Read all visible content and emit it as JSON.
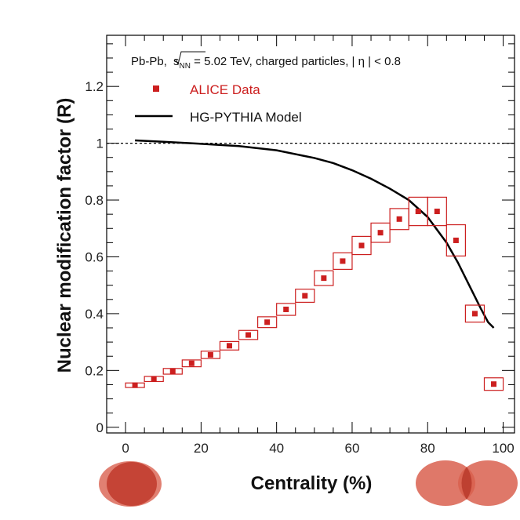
{
  "chart_data": {
    "type": "scatter",
    "annotation": {
      "system": "Pb-Pb,",
      "energy_sym": "s",
      "energy_sub": "NN",
      "energy_rest": " = 5.02 TeV, charged particles, | η | < 0.8"
    },
    "xlabel": "Centrality (%)",
    "ylabel": "Nuclear modification factor (R)",
    "xlim": [
      -5,
      103
    ],
    "ylim": [
      -0.02,
      1.38
    ],
    "xticks": [
      0,
      20,
      40,
      60,
      80,
      100
    ],
    "yticks": [
      0,
      0.2,
      0.4,
      0.6,
      0.8,
      1,
      1.2
    ],
    "ytick_labels": [
      "0",
      "0.2",
      "0.4",
      "0.6",
      "0.8",
      "1",
      "1.2"
    ],
    "reference_line": 1.0,
    "legend_position": "top-left",
    "series": [
      {
        "name": "ALICE Data",
        "kind": "points_with_syst_boxes",
        "color": "#cc1f1f",
        "x": [
          2.5,
          7.5,
          12.5,
          17.5,
          22.5,
          27.5,
          32.5,
          37.5,
          42.5,
          47.5,
          52.5,
          57.5,
          62.5,
          67.5,
          72.5,
          77.5,
          82.5,
          87.5,
          92.5,
          97.5
        ],
        "y": [
          0.148,
          0.17,
          0.197,
          0.225,
          0.255,
          0.287,
          0.325,
          0.37,
          0.415,
          0.463,
          0.525,
          0.585,
          0.64,
          0.685,
          0.733,
          0.76,
          0.76,
          0.658,
          0.4,
          0.152
        ],
        "syst": [
          0.008,
          0.009,
          0.01,
          0.012,
          0.013,
          0.015,
          0.016,
          0.019,
          0.021,
          0.023,
          0.026,
          0.029,
          0.032,
          0.034,
          0.037,
          0.05,
          0.05,
          0.055,
          0.03,
          0.022
        ]
      },
      {
        "name": "HG-PYTHIA Model",
        "kind": "line",
        "color": "#000000",
        "x": [
          2.5,
          10,
          20,
          30,
          40,
          50,
          55,
          60,
          65,
          70,
          75,
          80,
          85,
          88,
          91,
          94,
          96,
          97.5
        ],
        "y": [
          1.01,
          1.005,
          0.998,
          0.99,
          0.975,
          0.948,
          0.93,
          0.905,
          0.875,
          0.84,
          0.8,
          0.74,
          0.65,
          0.58,
          0.5,
          0.42,
          0.37,
          0.35
        ]
      }
    ],
    "colors": {
      "data": "#cc1f1f",
      "model": "#000000",
      "ellipse_fill": "#d24a3a"
    }
  }
}
